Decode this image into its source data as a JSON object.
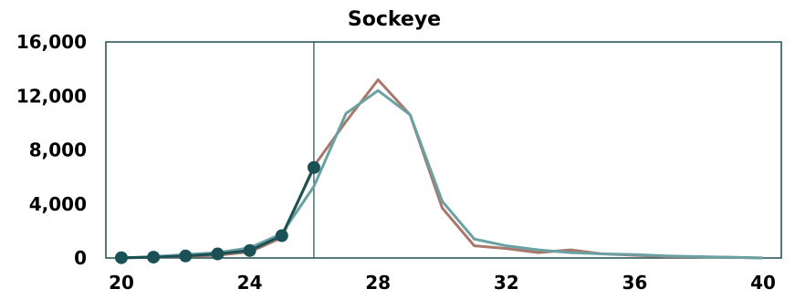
{
  "chart_data": {
    "type": "line",
    "title": "Sockeye",
    "xlabel": "",
    "ylabel": "",
    "xlim": [
      20,
      40
    ],
    "ylim": [
      0,
      16000
    ],
    "x_ticks": [
      "20",
      "24",
      "28",
      "32",
      "36",
      "40"
    ],
    "y_ticks": [
      "0",
      "4,000",
      "8,000",
      "12,000",
      "16,000"
    ],
    "grid": false,
    "legend": "none",
    "vline_x": 26,
    "series": [
      {
        "color": "#a9776b",
        "x": [
          20,
          21,
          22,
          23,
          24,
          25,
          26,
          27,
          28,
          29,
          30,
          31,
          32,
          33,
          34,
          35,
          36,
          37,
          38,
          39,
          40
        ],
        "values": [
          0,
          50,
          100,
          200,
          450,
          1500,
          6800,
          10100,
          13200,
          10600,
          3700,
          900,
          700,
          400,
          600,
          300,
          200,
          100,
          80,
          50,
          0
        ]
      },
      {
        "color": "#6aa1a3",
        "x": [
          20,
          21,
          22,
          23,
          24,
          25,
          26,
          27,
          28,
          29,
          30,
          31,
          32,
          33,
          34,
          35,
          36,
          37,
          38,
          39,
          40
        ],
        "values": [
          0,
          100,
          250,
          400,
          750,
          1800,
          5300,
          10700,
          12400,
          10600,
          4200,
          1400,
          900,
          600,
          400,
          300,
          250,
          150,
          100,
          50,
          0
        ]
      },
      {
        "color": "#1a5156",
        "markers": true,
        "x": [
          20,
          21,
          22,
          23,
          24,
          25,
          26
        ],
        "values": [
          20,
          60,
          150,
          300,
          550,
          1650,
          6700
        ]
      }
    ]
  }
}
